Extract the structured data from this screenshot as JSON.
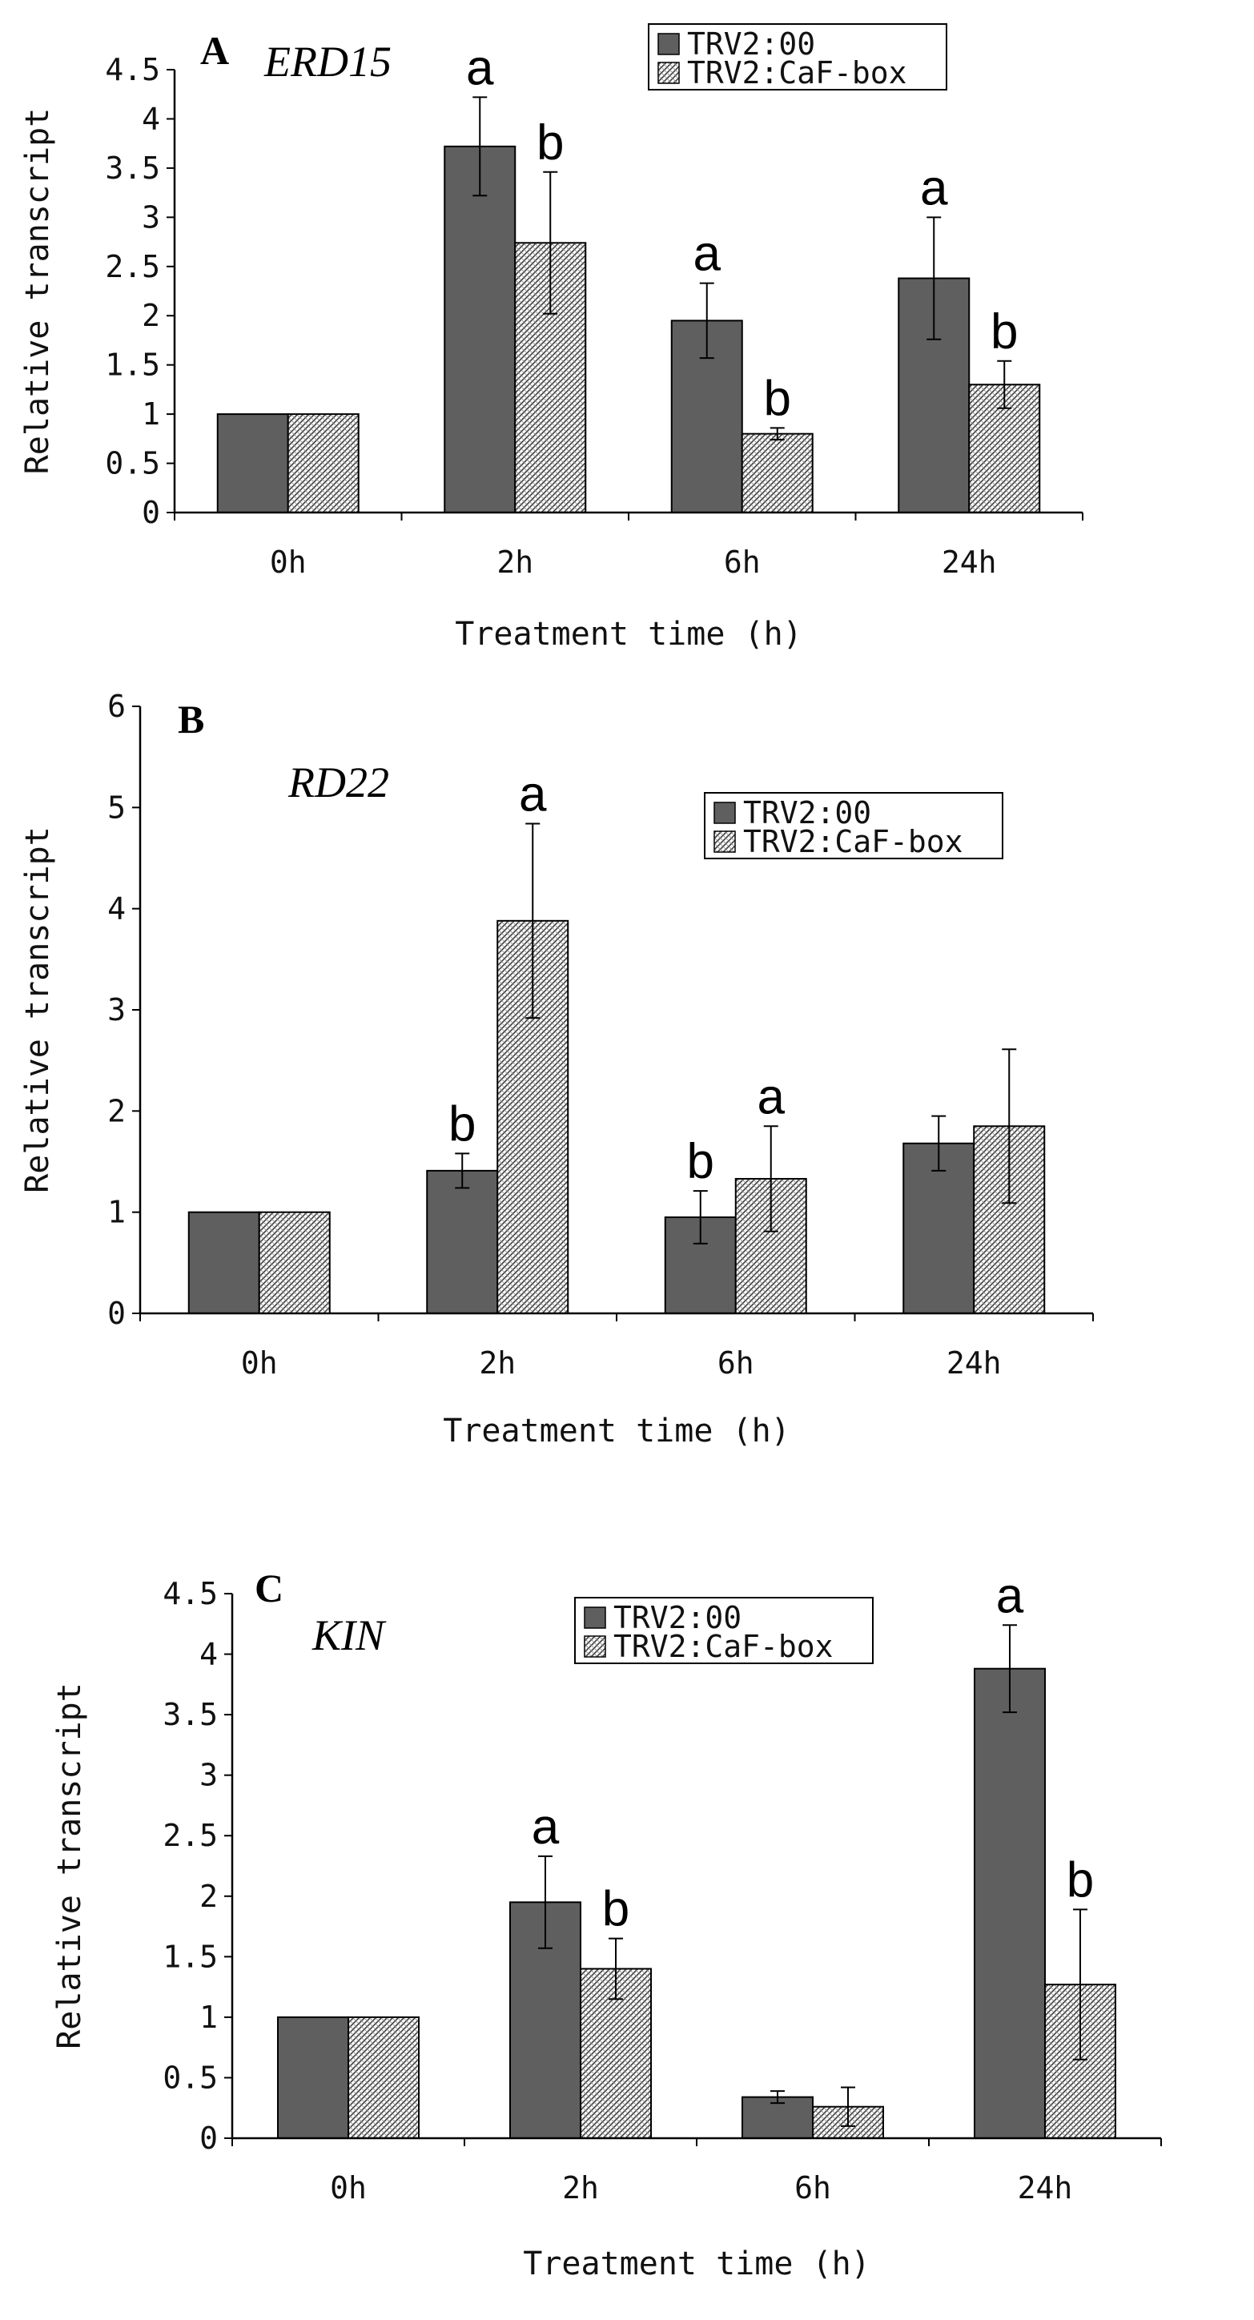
{
  "chart_data": [
    {
      "type": "bar",
      "panel_letter": "A",
      "gene": "ERD15",
      "ylabel": "Relative transcript",
      "xlabel": "Treatment time (h)",
      "categories": [
        "0h",
        "2h",
        "6h",
        "24h"
      ],
      "ylim": [
        0,
        4.5
      ],
      "yticks": [
        "0",
        "0.5",
        "1",
        "1.5",
        "2",
        "2.5",
        "3",
        "3.5",
        "4",
        "4.5"
      ],
      "legend_position": "top-right",
      "series": [
        {
          "name": "TRV2:00",
          "pattern": "solid",
          "values": [
            1.0,
            3.72,
            1.95,
            2.38
          ],
          "errors": [
            0,
            0.5,
            0.38,
            0.62
          ],
          "letters": [
            "",
            "a",
            "a",
            "a"
          ]
        },
        {
          "name": "TRV2:CaF-box",
          "pattern": "hatched",
          "values": [
            1.0,
            2.74,
            0.8,
            1.3
          ],
          "errors": [
            0,
            0.72,
            0.06,
            0.24
          ],
          "letters": [
            "",
            "b",
            "b",
            "b"
          ]
        }
      ]
    },
    {
      "type": "bar",
      "panel_letter": "B",
      "gene": "RD22",
      "ylabel": "Relative transcript",
      "xlabel": "Treatment time (h)",
      "categories": [
        "0h",
        "2h",
        "6h",
        "24h"
      ],
      "ylim": [
        0,
        6
      ],
      "yticks": [
        "0",
        "1",
        "2",
        "3",
        "4",
        "5",
        "6"
      ],
      "legend_position": "top-right",
      "series": [
        {
          "name": "TRV2:00",
          "pattern": "solid",
          "values": [
            1.0,
            1.41,
            0.95,
            1.68
          ],
          "errors": [
            0,
            0.17,
            0.26,
            0.27
          ],
          "letters": [
            "",
            "b",
            "b",
            ""
          ]
        },
        {
          "name": "TRV2:CaF-box",
          "pattern": "hatched",
          "values": [
            1.0,
            3.88,
            1.33,
            1.85
          ],
          "errors": [
            0,
            0.96,
            0.52,
            0.76
          ],
          "letters": [
            "",
            "a",
            "a",
            ""
          ]
        }
      ]
    },
    {
      "type": "bar",
      "panel_letter": "C",
      "gene": "KIN",
      "ylabel": "Relative transcript",
      "xlabel": "Treatment time (h)",
      "categories": [
        "0h",
        "2h",
        "6h",
        "24h"
      ],
      "ylim": [
        0,
        4.5
      ],
      "yticks": [
        "0",
        "0.5",
        "1",
        "1.5",
        "2",
        "2.5",
        "3",
        "3.5",
        "4",
        "4.5"
      ],
      "legend_position": "top-center",
      "series": [
        {
          "name": "TRV2:00",
          "pattern": "solid",
          "values": [
            1.0,
            1.95,
            0.34,
            3.88
          ],
          "errors": [
            0,
            0.38,
            0.05,
            0.36
          ],
          "letters": [
            "",
            "a",
            "",
            "a"
          ]
        },
        {
          "name": "TRV2:CaF-box",
          "pattern": "hatched",
          "values": [
            1.0,
            1.4,
            0.26,
            1.27
          ],
          "errors": [
            0,
            0.25,
            0.16,
            0.62
          ],
          "letters": [
            "",
            "b",
            "",
            "b"
          ]
        }
      ]
    }
  ],
  "colors": {
    "solid_fill": "#5f5f5f",
    "hatch_bg": "#ffffff",
    "hatch_line": "#444444",
    "axis": "#000000"
  }
}
